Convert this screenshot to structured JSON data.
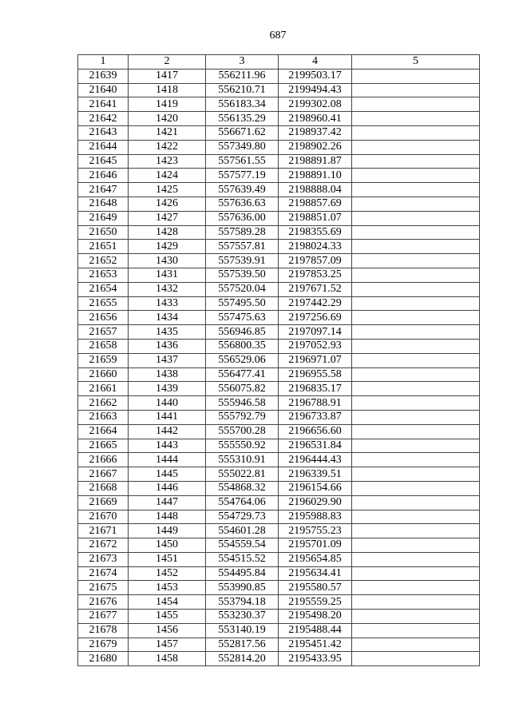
{
  "page_number": "687",
  "table": {
    "headers": [
      "1",
      "2",
      "3",
      "4",
      "5"
    ],
    "rows": [
      [
        "21639",
        "1417",
        "556211.96",
        "2199503.17",
        ""
      ],
      [
        "21640",
        "1418",
        "556210.71",
        "2199494.43",
        ""
      ],
      [
        "21641",
        "1419",
        "556183.34",
        "2199302.08",
        ""
      ],
      [
        "21642",
        "1420",
        "556135.29",
        "2198960.41",
        ""
      ],
      [
        "21643",
        "1421",
        "556671.62",
        "2198937.42",
        ""
      ],
      [
        "21644",
        "1422",
        "557349.80",
        "2198902.26",
        ""
      ],
      [
        "21645",
        "1423",
        "557561.55",
        "2198891.87",
        ""
      ],
      [
        "21646",
        "1424",
        "557577.19",
        "2198891.10",
        ""
      ],
      [
        "21647",
        "1425",
        "557639.49",
        "2198888.04",
        ""
      ],
      [
        "21648",
        "1426",
        "557636.63",
        "2198857.69",
        ""
      ],
      [
        "21649",
        "1427",
        "557636.00",
        "2198851.07",
        ""
      ],
      [
        "21650",
        "1428",
        "557589.28",
        "2198355.69",
        ""
      ],
      [
        "21651",
        "1429",
        "557557.81",
        "2198024.33",
        ""
      ],
      [
        "21652",
        "1430",
        "557539.91",
        "2197857.09",
        ""
      ],
      [
        "21653",
        "1431",
        "557539.50",
        "2197853.25",
        ""
      ],
      [
        "21654",
        "1432",
        "557520.04",
        "2197671.52",
        ""
      ],
      [
        "21655",
        "1433",
        "557495.50",
        "2197442.29",
        ""
      ],
      [
        "21656",
        "1434",
        "557475.63",
        "2197256.69",
        ""
      ],
      [
        "21657",
        "1435",
        "556946.85",
        "2197097.14",
        ""
      ],
      [
        "21658",
        "1436",
        "556800.35",
        "2197052.93",
        ""
      ],
      [
        "21659",
        "1437",
        "556529.06",
        "2196971.07",
        ""
      ],
      [
        "21660",
        "1438",
        "556477.41",
        "2196955.58",
        ""
      ],
      [
        "21661",
        "1439",
        "556075.82",
        "2196835.17",
        ""
      ],
      [
        "21662",
        "1440",
        "555946.58",
        "2196788.91",
        ""
      ],
      [
        "21663",
        "1441",
        "555792.79",
        "2196733.87",
        ""
      ],
      [
        "21664",
        "1442",
        "555700.28",
        "2196656.60",
        ""
      ],
      [
        "21665",
        "1443",
        "555550.92",
        "2196531.84",
        ""
      ],
      [
        "21666",
        "1444",
        "555310.91",
        "2196444.43",
        ""
      ],
      [
        "21667",
        "1445",
        "555022.81",
        "2196339.51",
        ""
      ],
      [
        "21668",
        "1446",
        "554868.32",
        "2196154.66",
        ""
      ],
      [
        "21669",
        "1447",
        "554764.06",
        "2196029.90",
        ""
      ],
      [
        "21670",
        "1448",
        "554729.73",
        "2195988.83",
        ""
      ],
      [
        "21671",
        "1449",
        "554601.28",
        "2195755.23",
        ""
      ],
      [
        "21672",
        "1450",
        "554559.54",
        "2195701.09",
        ""
      ],
      [
        "21673",
        "1451",
        "554515.52",
        "2195654.85",
        ""
      ],
      [
        "21674",
        "1452",
        "554495.84",
        "2195634.41",
        ""
      ],
      [
        "21675",
        "1453",
        "553990.85",
        "2195580.57",
        ""
      ],
      [
        "21676",
        "1454",
        "553794.18",
        "2195559.25",
        ""
      ],
      [
        "21677",
        "1455",
        "553230.37",
        "2195498.20",
        ""
      ],
      [
        "21678",
        "1456",
        "553140.19",
        "2195488.44",
        ""
      ],
      [
        "21679",
        "1457",
        "552817.56",
        "2195451.42",
        ""
      ],
      [
        "21680",
        "1458",
        "552814.20",
        "2195433.95",
        ""
      ]
    ]
  }
}
